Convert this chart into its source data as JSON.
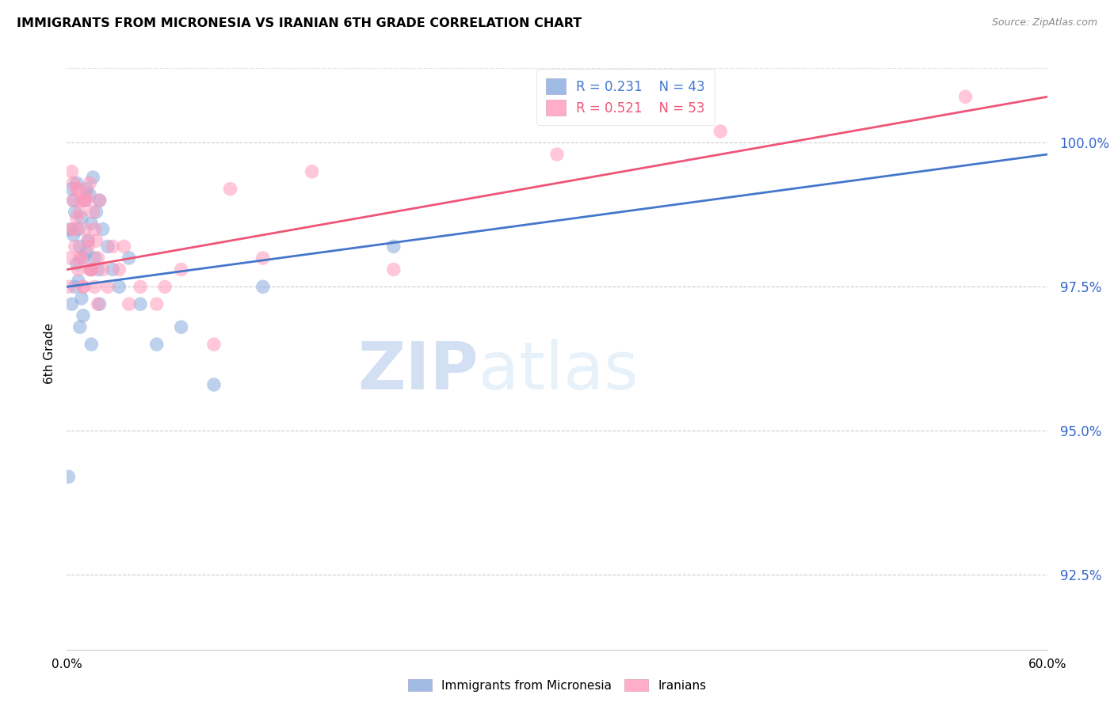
{
  "title": "IMMIGRANTS FROM MICRONESIA VS IRANIAN 6TH GRADE CORRELATION CHART",
  "source": "Source: ZipAtlas.com",
  "ylabel": "6th Grade",
  "yticks": [
    92.5,
    95.0,
    97.5,
    100.0
  ],
  "ytick_labels": [
    "92.5%",
    "95.0%",
    "97.5%",
    "100.0%"
  ],
  "xmin": 0.0,
  "xmax": 60.0,
  "ymin": 91.2,
  "ymax": 101.5,
  "R_blue": 0.231,
  "N_blue": 43,
  "R_pink": 0.521,
  "N_pink": 53,
  "legend_label_blue": "Immigrants from Micronesia",
  "legend_label_pink": "Iranians",
  "blue_color": "#88AADD",
  "pink_color": "#FF99BB",
  "blue_line_color": "#4477CC",
  "pink_line_color": "#EE5577",
  "watermark_zip": "ZIP",
  "watermark_atlas": "atlas",
  "blue_x": [
    0.1,
    0.2,
    0.3,
    0.4,
    0.5,
    0.6,
    0.7,
    0.8,
    0.9,
    1.0,
    1.1,
    1.2,
    1.3,
    1.4,
    1.5,
    1.6,
    1.7,
    1.8,
    1.9,
    2.0,
    2.2,
    2.5,
    2.8,
    3.2,
    3.8,
    4.5,
    5.5,
    7.0,
    9.0,
    12.0,
    2.0,
    1.5,
    1.0,
    0.8,
    0.5,
    0.3,
    0.6,
    0.9,
    1.2,
    1.5,
    20.0,
    0.4,
    0.7
  ],
  "blue_y": [
    94.2,
    98.5,
    99.2,
    99.0,
    98.8,
    99.3,
    98.5,
    98.2,
    98.7,
    98.0,
    99.0,
    99.2,
    98.3,
    99.1,
    98.6,
    99.4,
    98.0,
    98.8,
    97.8,
    99.0,
    98.5,
    98.2,
    97.8,
    97.5,
    98.0,
    97.2,
    96.5,
    96.8,
    95.8,
    97.5,
    97.2,
    97.8,
    97.0,
    96.8,
    97.5,
    97.2,
    97.9,
    97.3,
    98.1,
    96.5,
    98.2,
    98.4,
    97.6
  ],
  "pink_x": [
    0.1,
    0.2,
    0.3,
    0.4,
    0.5,
    0.6,
    0.7,
    0.8,
    0.9,
    1.0,
    1.1,
    1.2,
    1.3,
    1.4,
    1.5,
    1.6,
    1.7,
    1.8,
    1.9,
    2.0,
    2.2,
    2.5,
    2.8,
    3.2,
    3.8,
    4.5,
    5.5,
    7.0,
    9.0,
    12.0,
    0.3,
    0.5,
    0.7,
    0.9,
    1.1,
    1.3,
    1.5,
    1.7,
    1.9,
    0.4,
    0.6,
    0.8,
    1.0,
    1.2,
    1.4,
    3.5,
    6.0,
    10.0,
    15.0,
    20.0,
    30.0,
    40.0,
    55.0
  ],
  "pink_y": [
    97.5,
    98.0,
    98.5,
    99.0,
    98.2,
    99.2,
    97.8,
    98.8,
    99.0,
    97.5,
    98.5,
    99.1,
    98.2,
    99.3,
    97.8,
    98.8,
    97.5,
    98.3,
    98.0,
    99.0,
    97.8,
    97.5,
    98.2,
    97.8,
    97.2,
    97.5,
    97.2,
    97.8,
    96.5,
    98.0,
    99.5,
    98.5,
    99.2,
    98.0,
    99.0,
    98.3,
    97.8,
    98.5,
    97.2,
    99.3,
    98.7,
    98.0,
    97.5,
    99.0,
    97.8,
    98.2,
    97.5,
    99.2,
    99.5,
    97.8,
    99.8,
    100.2,
    100.8
  ],
  "trendline_blue_x0": 0.0,
  "trendline_blue_y0": 97.5,
  "trendline_blue_x1": 60.0,
  "trendline_blue_y1": 99.8,
  "trendline_pink_x0": 0.0,
  "trendline_pink_y0": 97.8,
  "trendline_pink_x1": 60.0,
  "trendline_pink_y1": 100.8
}
